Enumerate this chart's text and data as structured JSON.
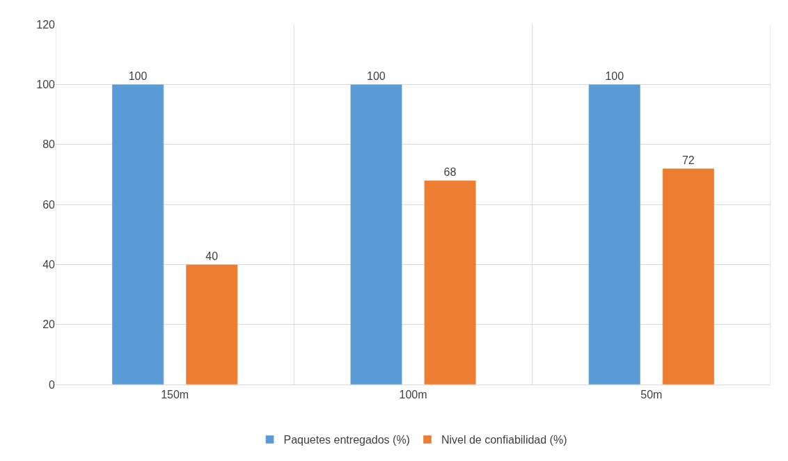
{
  "chart_data": {
    "type": "bar",
    "categories": [
      "150m",
      "100m",
      "50m"
    ],
    "series": [
      {
        "name": "Paquetes entregados (%)",
        "color": "#5b9bd5",
        "values": [
          100,
          100,
          100
        ]
      },
      {
        "name": "Nivel de confiabilidad (%)",
        "color": "#ed7d31",
        "values": [
          40,
          68,
          72
        ]
      }
    ],
    "ylim": [
      0,
      120
    ],
    "yticks": [
      0,
      20,
      40,
      60,
      80,
      100,
      120
    ],
    "grid": true,
    "legend": "bottom",
    "data_labels": true
  }
}
